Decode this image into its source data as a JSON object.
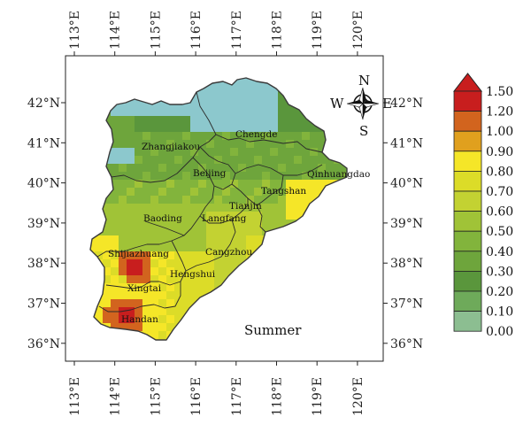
{
  "season_label": "Summer",
  "axis": {
    "lon_labels": [
      "113°E",
      "114°E",
      "115°E",
      "116°E",
      "117°E",
      "118°E",
      "119°E",
      "120°E"
    ],
    "lat_labels": [
      "42°N",
      "41°N",
      "40°N",
      "39°N",
      "38°N",
      "37°N",
      "36°N"
    ]
  },
  "compass": {
    "north": "N",
    "south": "S",
    "east": "E",
    "west": "W"
  },
  "cities": [
    {
      "name": "Zhangjiakou"
    },
    {
      "name": "Chengde"
    },
    {
      "name": "Beijing"
    },
    {
      "name": "Qinhuangdao"
    },
    {
      "name": "Tangshan"
    },
    {
      "name": "Tianjin"
    },
    {
      "name": "Baoding"
    },
    {
      "name": "Langfang"
    },
    {
      "name": "Cangzhou"
    },
    {
      "name": "Shijiazhuang"
    },
    {
      "name": "Hengshui"
    },
    {
      "name": "Xingtai"
    },
    {
      "name": "Handan"
    }
  ],
  "colorbar": {
    "labels": [
      "1.50",
      "1.20",
      "1.00",
      "0.90",
      "0.80",
      "0.70",
      "0.60",
      "0.50",
      "0.40",
      "0.30",
      "0.20",
      "0.10",
      "0.00"
    ],
    "colors": [
      "#c81e1e",
      "#d2641e",
      "#e0a01e",
      "#f5e628",
      "#dcdc28",
      "#c3d232",
      "#a0c337",
      "#82b43c",
      "#6ea53c",
      "#5a963c",
      "#6eaa5a",
      "#8cbe91",
      "#8cc8cd"
    ]
  }
}
